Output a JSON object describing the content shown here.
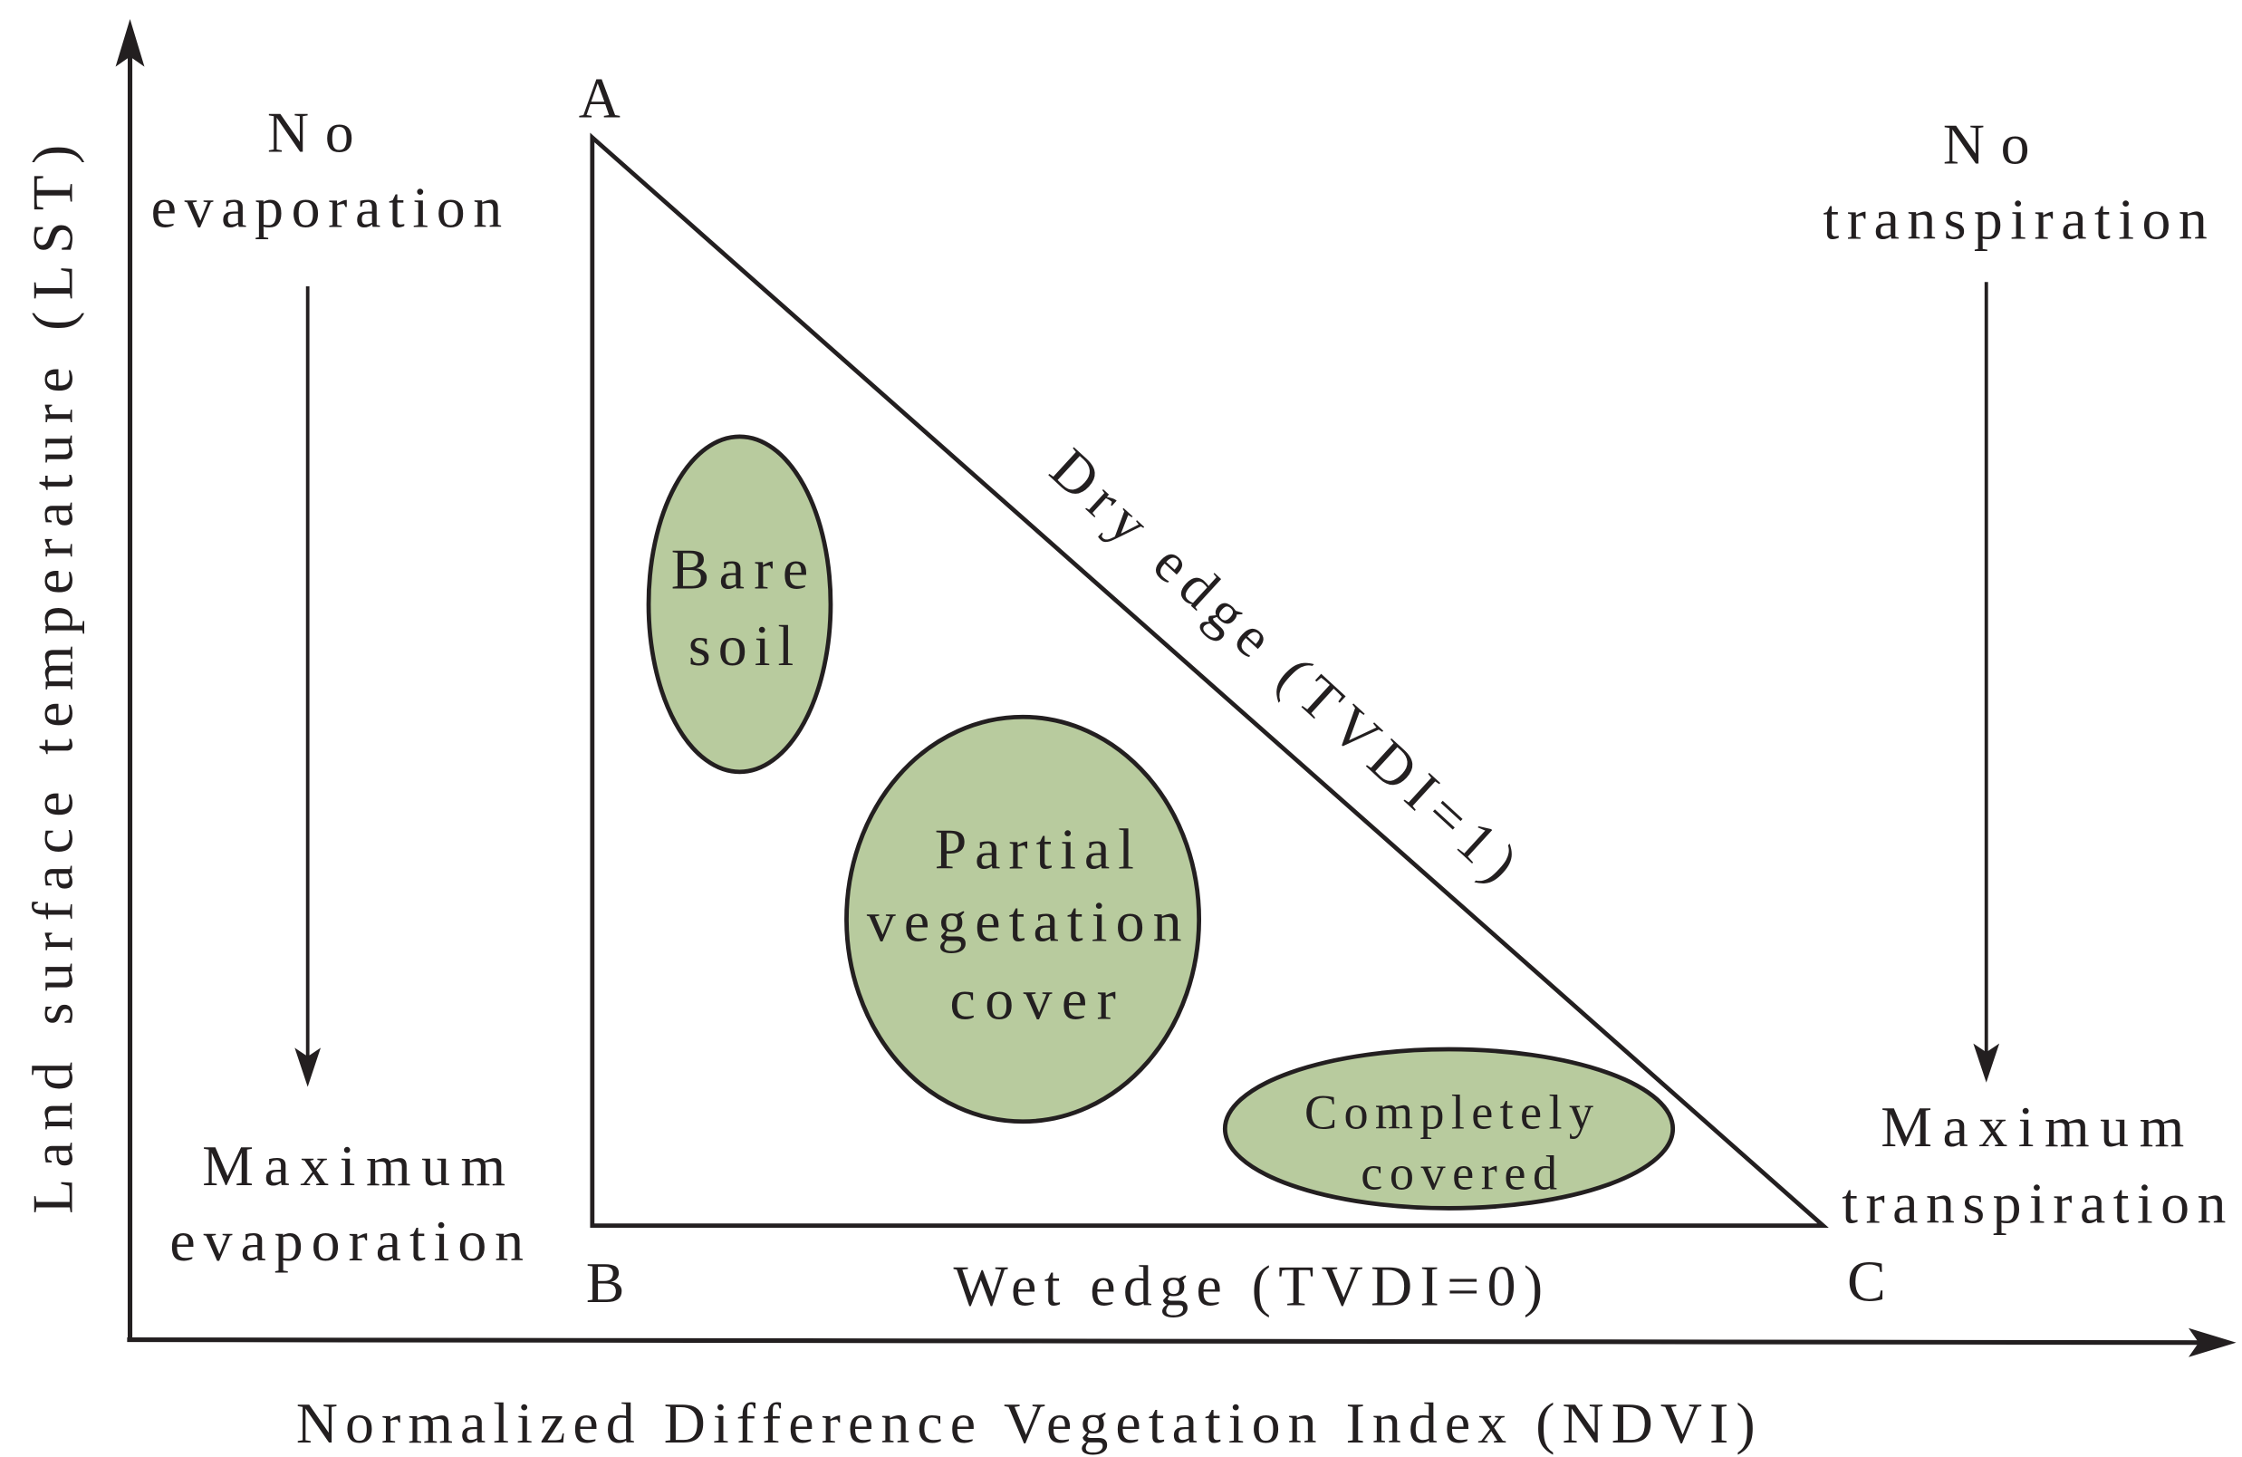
{
  "axes": {
    "y_label": "Land surface temperature (LST)",
    "x_label": "Normalized Difference Vegetation Index (NDVI)"
  },
  "vertices": {
    "a": "A",
    "b": "B",
    "c": "C"
  },
  "left": {
    "top": [
      "No",
      "evaporation"
    ],
    "bottom": [
      "Maximum",
      "evaporation"
    ]
  },
  "right": {
    "top": [
      "No",
      "transpiration"
    ],
    "bottom": [
      "Maximum",
      "transpiration"
    ]
  },
  "edges": {
    "dry": "Dry edge (TVDI=1)",
    "wet": "Wet edge (TVDI=0)"
  },
  "regions": {
    "bare_soil": [
      "Bare",
      "soil"
    ],
    "partial": [
      "Partial",
      "vegetation",
      "cover"
    ],
    "complete": [
      "Completely",
      "covered"
    ]
  },
  "colors": {
    "region_fill": "#b8cb9e",
    "line": "#231f20"
  }
}
